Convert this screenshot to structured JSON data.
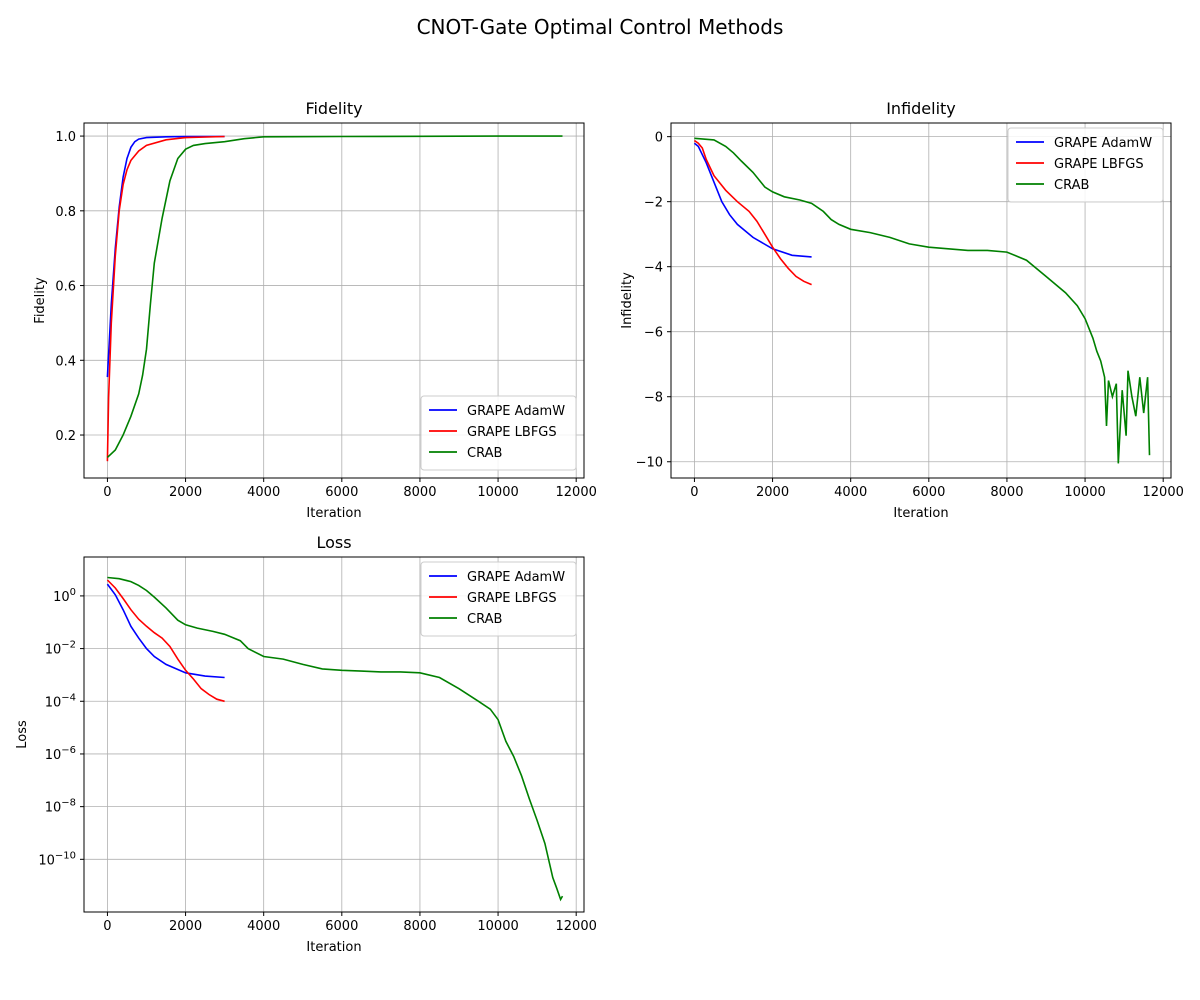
{
  "figure_title": "CNOT-Gate Optimal Control Methods",
  "colors": {
    "GRAPE AdamW": "#0000ff",
    "GRAPE LBFGS": "#ff0000",
    "CRAB": "#008000",
    "grid": "#b0b0b0"
  },
  "chart_data": [
    {
      "type": "line",
      "title": "Fidelity",
      "xlabel": "Iteration",
      "ylabel": "Fidelity",
      "xlim": [
        -600,
        12200
      ],
      "ylim": [
        0.085,
        1.035
      ],
      "xticks": [
        0,
        2000,
        4000,
        6000,
        8000,
        10000,
        12000
      ],
      "yticks": [
        0.2,
        0.4,
        0.6,
        0.8,
        1.0
      ],
      "ytick_labels": [
        "0.2",
        "0.4",
        "0.6",
        "0.8",
        "1.0"
      ],
      "grid": true,
      "legend_position": "lower-right",
      "series": [
        {
          "name": "GRAPE AdamW",
          "x": [
            0,
            100,
            200,
            300,
            400,
            500,
            600,
            700,
            800,
            1000,
            1500,
            2000,
            3000
          ],
          "y": [
            0.355,
            0.55,
            0.7,
            0.81,
            0.89,
            0.94,
            0.97,
            0.985,
            0.992,
            0.996,
            0.998,
            0.999,
            0.999
          ]
        },
        {
          "name": "GRAPE LBFGS",
          "x": [
            0,
            30,
            100,
            200,
            300,
            400,
            500,
            600,
            800,
            1000,
            1500,
            2000,
            3000
          ],
          "y": [
            0.13,
            0.3,
            0.5,
            0.68,
            0.8,
            0.87,
            0.91,
            0.935,
            0.96,
            0.975,
            0.99,
            0.996,
            0.999
          ]
        },
        {
          "name": "CRAB",
          "x": [
            0,
            200,
            400,
            600,
            800,
            900,
            1000,
            1100,
            1200,
            1400,
            1600,
            1800,
            2000,
            2200,
            2500,
            3000,
            3500,
            4000,
            6000,
            8000,
            10000,
            11650
          ],
          "y": [
            0.14,
            0.16,
            0.2,
            0.25,
            0.31,
            0.36,
            0.43,
            0.55,
            0.66,
            0.78,
            0.88,
            0.94,
            0.965,
            0.975,
            0.98,
            0.985,
            0.993,
            0.998,
            0.999,
            0.9995,
            0.9999,
            1.0
          ]
        }
      ]
    },
    {
      "type": "line",
      "title": "Infidelity",
      "xlabel": "Iteration",
      "ylabel": "Infidelity",
      "xlim": [
        -600,
        12200
      ],
      "ylim": [
        -10.5,
        0.42
      ],
      "xticks": [
        0,
        2000,
        4000,
        6000,
        8000,
        10000,
        12000
      ],
      "yticks": [
        -10,
        -8,
        -6,
        -4,
        -2,
        0
      ],
      "ytick_labels": [
        "−10",
        "−8",
        "−6",
        "−4",
        "−2",
        "0"
      ],
      "grid": true,
      "legend_position": "upper-right",
      "series": [
        {
          "name": "GRAPE AdamW",
          "x": [
            0,
            100,
            300,
            500,
            700,
            900,
            1100,
            1500,
            2000,
            2500,
            3000
          ],
          "y": [
            -0.2,
            -0.3,
            -0.8,
            -1.4,
            -2.0,
            -2.4,
            -2.7,
            -3.1,
            -3.45,
            -3.65,
            -3.7
          ]
        },
        {
          "name": "GRAPE LBFGS",
          "x": [
            0,
            100,
            200,
            300,
            500,
            800,
            1100,
            1400,
            1600,
            1800,
            2000,
            2200,
            2400,
            2600,
            2800,
            3000
          ],
          "y": [
            -0.12,
            -0.2,
            -0.35,
            -0.7,
            -1.2,
            -1.65,
            -2.0,
            -2.3,
            -2.6,
            -3.0,
            -3.4,
            -3.75,
            -4.05,
            -4.3,
            -4.45,
            -4.55
          ]
        },
        {
          "name": "CRAB",
          "x": [
            0,
            500,
            800,
            1000,
            1200,
            1500,
            1800,
            2000,
            2300,
            2700,
            3000,
            3300,
            3500,
            3700,
            4000,
            4500,
            5000,
            5500,
            6000,
            6500,
            7000,
            7500,
            8000,
            8500,
            9000,
            9500,
            9800,
            10000,
            10200,
            10300,
            10400,
            10500,
            10550,
            10600,
            10700,
            10800,
            10850,
            10950,
            11050,
            11100,
            11200,
            11300,
            11400,
            11500,
            11600,
            11650
          ],
          "y": [
            -0.05,
            -0.1,
            -0.3,
            -0.5,
            -0.75,
            -1.1,
            -1.55,
            -1.7,
            -1.85,
            -1.95,
            -2.05,
            -2.3,
            -2.55,
            -2.7,
            -2.85,
            -2.95,
            -3.1,
            -3.3,
            -3.4,
            -3.45,
            -3.5,
            -3.5,
            -3.55,
            -3.8,
            -4.3,
            -4.8,
            -5.2,
            -5.6,
            -6.2,
            -6.6,
            -6.9,
            -7.4,
            -8.9,
            -7.5,
            -8.0,
            -7.6,
            -10.05,
            -7.8,
            -9.2,
            -7.2,
            -8.0,
            -8.6,
            -7.4,
            -8.5,
            -7.4,
            -9.8
          ]
        }
      ]
    },
    {
      "type": "line",
      "title": "Loss",
      "xlabel": "Iteration",
      "ylabel": "Loss",
      "yscale": "log",
      "xlim": [
        -600,
        12200
      ],
      "ylim": [
        1e-12,
        30
      ],
      "xticks": [
        0,
        2000,
        4000,
        6000,
        8000,
        10000,
        12000
      ],
      "ytick_mantissa": "10",
      "ytick_exponents": [
        "0",
        "−2",
        "−4",
        "−6",
        "−8",
        "−10"
      ],
      "grid": true,
      "legend_position": "upper-right",
      "series": [
        {
          "name": "GRAPE AdamW",
          "x": [
            0,
            200,
            400,
            600,
            800,
            1000,
            1200,
            1500,
            2000,
            2500,
            3000
          ],
          "y": [
            2.8,
            1.1,
            0.3,
            0.07,
            0.025,
            0.01,
            0.005,
            0.0025,
            0.0012,
            0.0009,
            0.0008
          ]
        },
        {
          "name": "GRAPE LBFGS",
          "x": [
            0,
            200,
            400,
            600,
            800,
            1000,
            1200,
            1400,
            1600,
            1800,
            2000,
            2200,
            2400,
            2600,
            2800,
            3000
          ],
          "y": [
            4,
            2,
            0.8,
            0.3,
            0.13,
            0.07,
            0.04,
            0.025,
            0.012,
            0.004,
            0.0015,
            0.0007,
            0.0003,
            0.00018,
            0.00012,
            0.0001
          ]
        },
        {
          "name": "CRAB",
          "x": [
            0,
            300,
            600,
            800,
            1000,
            1200,
            1500,
            1800,
            2000,
            2300,
            2700,
            3000,
            3400,
            3600,
            4000,
            4500,
            5000,
            5500,
            6000,
            6500,
            7000,
            7500,
            8000,
            8500,
            9000,
            9500,
            9800,
            10000,
            10200,
            10400,
            10600,
            10800,
            11000,
            11200,
            11400,
            11500,
            11600,
            11650
          ],
          "y": [
            5,
            4.5,
            3.5,
            2.5,
            1.6,
            0.9,
            0.35,
            0.12,
            0.08,
            0.06,
            0.045,
            0.035,
            0.02,
            0.01,
            0.005,
            0.004,
            0.0025,
            0.0017,
            0.0015,
            0.0014,
            0.0013,
            0.0013,
            0.0012,
            0.0008,
            0.0003,
            0.0001,
            5e-05,
            2e-05,
            3e-06,
            8e-07,
            1.5e-07,
            2e-08,
            3e-09,
            4e-10,
            2e-11,
            8e-12,
            3e-12,
            4e-12
          ]
        }
      ]
    }
  ]
}
